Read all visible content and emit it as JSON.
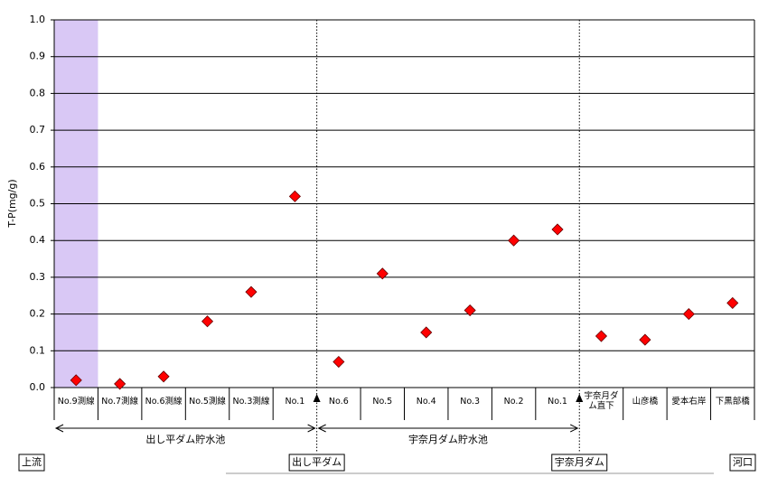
{
  "chart_data": {
    "type": "scatter",
    "y_label": "T-P(mg/g)",
    "categories": [
      "No.9測線",
      "No.7測線",
      "No.6測線",
      "No.5測線",
      "No.3測線",
      "No.1",
      "No.6",
      "No.5",
      "No.4",
      "No.3",
      "No.2",
      "No.1",
      "宇奈月ダム直下",
      "山彦橋",
      "愛本右岸",
      "下黒部橋"
    ],
    "series": [
      {
        "color": "#ff0000",
        "values": [
          0.02,
          0.01,
          0.03,
          0.18,
          0.26,
          0.52,
          0.07,
          0.31,
          0.15,
          0.21,
          0.4,
          0.43,
          0.14,
          0.13,
          0.2,
          0.23
        ]
      }
    ],
    "ylim": [
      0,
      1
    ],
    "yticks": [
      {
        "value": 0,
        "label": "0.0"
      },
      0.1,
      0.2,
      0.3,
      0.4,
      0.5,
      0.6,
      0.7,
      0.8,
      0.9,
      {
        "value": 1,
        "label": "1.0"
      }
    ],
    "grid": true,
    "reservoirs": [
      "出し平ダム貯水池",
      "宇奈月ダム貯水池"
    ],
    "places": [
      "上流",
      "出し平ダム",
      "宇奈月ダム",
      "河口"
    ]
  }
}
